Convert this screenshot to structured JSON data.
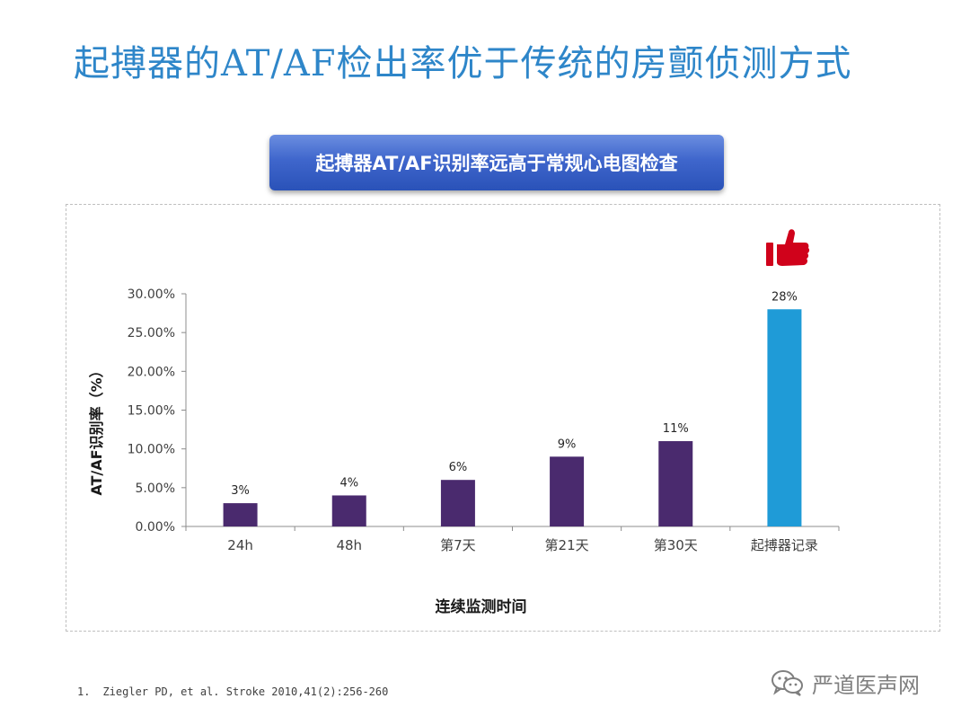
{
  "slide": {
    "title": "起搏器的AT/AF检出率优于传统的房颤侦测方式",
    "banner": "起搏器AT/AF识别率远高于常规心电图检查",
    "footnote_number": "1.",
    "footnote": "Ziegler PD, et al. Stroke 2010,41(2):256-260",
    "watermark": "严道医声网",
    "thumbs_up_icon_color": "#d0021b"
  },
  "chart_data": {
    "type": "bar",
    "categories": [
      "24h",
      "48h",
      "第7天",
      "第21天",
      "第30天",
      "起搏器记录"
    ],
    "values": [
      3,
      4,
      6,
      9,
      11,
      28
    ],
    "data_labels": [
      "3%",
      "4%",
      "6%",
      "9%",
      "11%",
      "28%"
    ],
    "bar_colors": [
      "#4a2a6e",
      "#4a2a6e",
      "#4a2a6e",
      "#4a2a6e",
      "#4a2a6e",
      "#1f9bd7"
    ],
    "xlabel": "连续监测时间",
    "ylabel": "AT/AF识别率（%）",
    "ylim": [
      0,
      30
    ],
    "yticks": [
      0,
      5,
      10,
      15,
      20,
      25,
      30
    ],
    "ytick_labels": [
      "0.00%",
      "5.00%",
      "10.00%",
      "15.00%",
      "20.00%",
      "25.00%",
      "30.00%"
    ],
    "grid": false,
    "legend": "none"
  }
}
